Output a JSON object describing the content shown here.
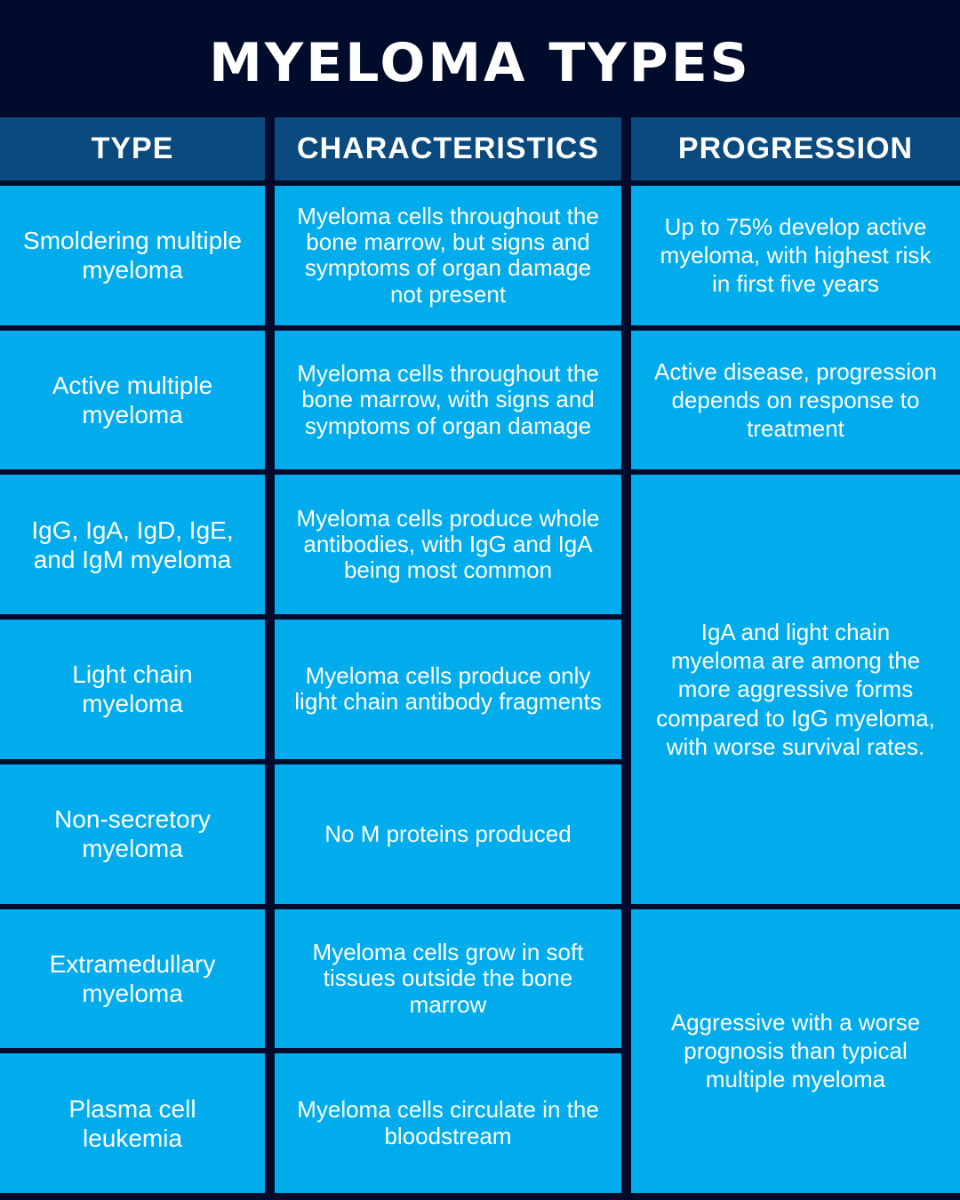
{
  "title": "MYELOMA TYPES",
  "colors": {
    "background_navy": "#010b2c",
    "header_blue": "#0a4a7e",
    "cell_blue": "#00aceb",
    "text": "#ffffff"
  },
  "table": {
    "headers": [
      "TYPE",
      "CHARACTERISTICS",
      "PROGRESSION"
    ],
    "rows": [
      {
        "type": "Smoldering multiple myeloma",
        "characteristics": "Myeloma cells throughout the bone marrow, but signs and symptoms of organ damage not present"
      },
      {
        "type": "Active multiple myeloma",
        "characteristics": "Myeloma cells throughout the bone marrow, with signs and symptoms of organ damage"
      },
      {
        "type": "IgG, IgA, IgD, IgE, and IgM myeloma",
        "characteristics": "Myeloma cells produce whole antibodies, with IgG and IgA being most common"
      },
      {
        "type": "Light chain myeloma",
        "characteristics": "Myeloma cells produce only light chain antibody fragments"
      },
      {
        "type": "Non-secretory myeloma",
        "characteristics": "No M proteins produced"
      },
      {
        "type": "Extramedullary myeloma",
        "characteristics": "Myeloma cells grow in soft tissues outside the bone marrow"
      },
      {
        "type": "Plasma cell leukemia",
        "characteristics": "Myeloma cells circulate in the bloodstream"
      }
    ],
    "progression_cells": [
      {
        "text": "Up to 75% develop active myeloma, with highest risk in first five years",
        "row_span": 1
      },
      {
        "text": "Active disease, progression depends on response to treatment",
        "row_span": 1
      },
      {
        "text": "IgA and light chain myeloma are among the more aggressive forms compared to IgG myeloma, with worse survival rates.",
        "row_span": 3
      },
      {
        "text": "Aggressive with a worse prognosis than typical multiple myeloma",
        "row_span": 2
      }
    ]
  }
}
